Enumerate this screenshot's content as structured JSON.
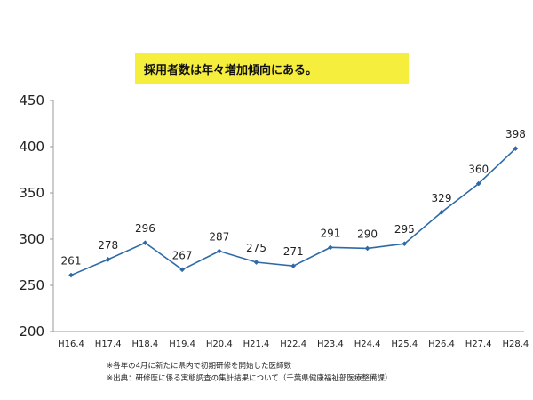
{
  "banner": "採用者数は年々増加傾向にある。",
  "notes": [
    "※各年の4月に新たに県内で初期研修を開始した医師数",
    "※出典：研修医に係る実態調査の集計結果について（千葉県健康福祉部医療整備課）"
  ],
  "chart_data": {
    "type": "line",
    "title": "",
    "xlabel": "",
    "ylabel": "",
    "categories": [
      "H16.4",
      "H17.4",
      "H18.4",
      "H19.4",
      "H20.4",
      "H21.4",
      "H22.4",
      "H23.4",
      "H24.4",
      "H25.4",
      "H26.4",
      "H27.4",
      "H28.4"
    ],
    "values": [
      261,
      278,
      296,
      267,
      287,
      275,
      271,
      291,
      290,
      295,
      329,
      360,
      398
    ],
    "ylim": [
      200,
      450
    ],
    "yticks": [
      200,
      250,
      300,
      350,
      400,
      450
    ],
    "grid": false,
    "line_color": "#2e6aa7",
    "data_labels": true
  }
}
